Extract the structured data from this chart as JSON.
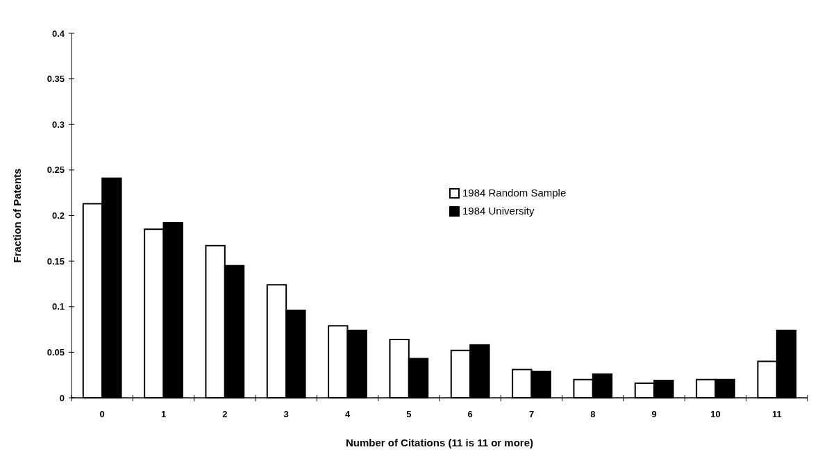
{
  "chart_data": {
    "type": "bar",
    "xlabel": "Number of Citations (11 is 11 or more)",
    "ylabel": "Fraction of Patents",
    "categories": [
      "0",
      "1",
      "2",
      "3",
      "4",
      "5",
      "6",
      "7",
      "8",
      "9",
      "10",
      "11"
    ],
    "series": [
      {
        "name": "1984 Random Sample",
        "color": "#ffffff",
        "values": [
          0.213,
          0.185,
          0.167,
          0.124,
          0.079,
          0.064,
          0.052,
          0.031,
          0.02,
          0.016,
          0.02,
          0.04
        ]
      },
      {
        "name": "1984 University",
        "color": "#000000",
        "values": [
          0.241,
          0.192,
          0.145,
          0.096,
          0.074,
          0.043,
          0.058,
          0.029,
          0.026,
          0.019,
          0.02,
          0.074
        ]
      }
    ],
    "ylim": [
      0,
      0.4
    ],
    "yticks": [
      0,
      0.05,
      0.1,
      0.15,
      0.2,
      0.25,
      0.3,
      0.35,
      0.4
    ],
    "legend": "center",
    "grid": false
  }
}
